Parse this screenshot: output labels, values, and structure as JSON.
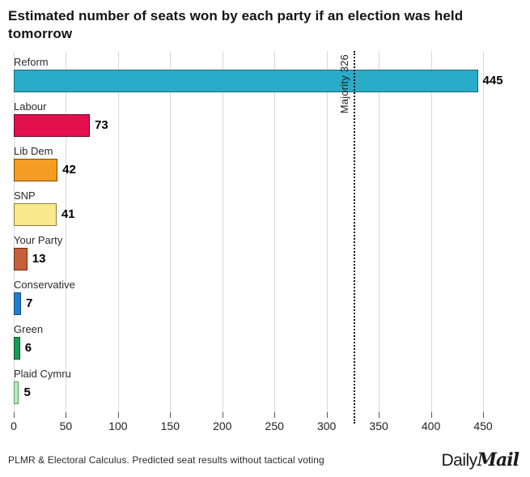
{
  "title": "Estimated number of seats won by each party if an election was held tomorrow",
  "chart_data": {
    "type": "bar",
    "orientation": "horizontal",
    "title": "Estimated number of seats won by each party if an election was held tomorrow",
    "categories": [
      "Reform",
      "Labour",
      "Lib Dem",
      "SNP",
      "Your Party",
      "Conservative",
      "Green",
      "Plaid Cymru"
    ],
    "values": [
      445,
      73,
      42,
      41,
      13,
      7,
      6,
      5
    ],
    "bar_colors": [
      "#29ACC8",
      "#E2104C",
      "#F59C22",
      "#FAE88C",
      "#C75F3B",
      "#1D7FD1",
      "#149E58",
      "#B9ECBD"
    ],
    "bar_border_colors": [
      "#17687a",
      "#71052d",
      "#7a4c0a",
      "#8a7d3f",
      "#6b3018",
      "#0e4d85",
      "#0a5530",
      "#5c9a62"
    ],
    "xlabel": "",
    "ylabel": "",
    "x_ticks": [
      0,
      50,
      100,
      150,
      200,
      250,
      300,
      350,
      400,
      450
    ],
    "xlim": [
      0,
      465
    ],
    "grid": "vertical",
    "gridline_color": "#d8d8d8",
    "reference_line": {
      "value": 326,
      "label": "Majority 326",
      "style": "dotted",
      "color": "#111111"
    }
  },
  "footer": {
    "source": "PLMR & Electoral Calculus. Predicted seat results without tactical voting",
    "logo_daily": "Daily",
    "logo_mail": "Mail"
  }
}
